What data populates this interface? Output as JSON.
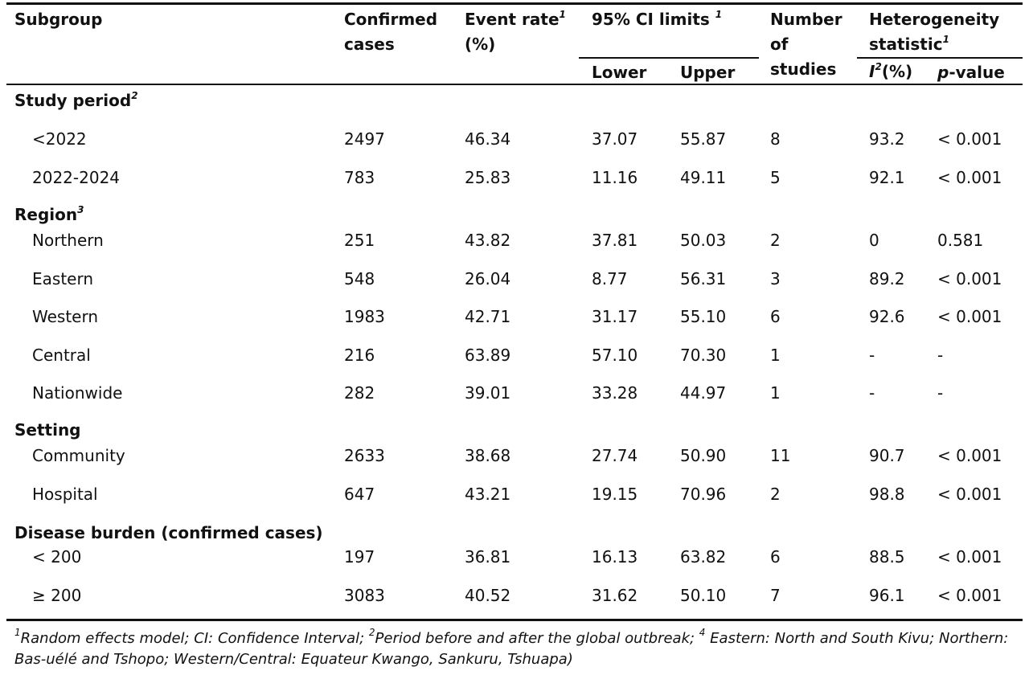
{
  "header": {
    "subgroup": "Subgroup",
    "confirmed": [
      "Confirmed",
      "cases"
    ],
    "event_rate": [
      "Event rate",
      "(%)"
    ],
    "event_rate_sup": "1",
    "ci": "95% CI limits",
    "ci_sup": "1",
    "lower": "Lower",
    "upper": "Upper",
    "studies": [
      "Number",
      "of",
      "studies"
    ],
    "het": [
      "Heterogeneity",
      "statistic"
    ],
    "het_sup": "1",
    "i2_letter": "I",
    "i2_sup": "2",
    "i2_rest": "(%)",
    "p_letter": "p",
    "p_rest": "-value"
  },
  "groups": [
    {
      "title": "Study period",
      "sup": "2",
      "rows": [
        [
          "<2022",
          "2497",
          "46.34",
          "37.07",
          "55.87",
          "8",
          "93.2",
          "< 0.001"
        ],
        [
          "2022-2024",
          "783",
          "25.83",
          "11.16",
          "49.11",
          "5",
          "92.1",
          "< 0.001"
        ]
      ]
    },
    {
      "title": "Region",
      "sup": "3",
      "rows": [
        [
          "Northern",
          "251",
          "43.82",
          "37.81",
          "50.03",
          "2",
          "0",
          "0.581"
        ],
        [
          "Eastern",
          "548",
          "26.04",
          "8.77",
          "56.31",
          "3",
          "89.2",
          "< 0.001"
        ],
        [
          "Western",
          "1983",
          "42.71",
          "31.17",
          "55.10",
          "6",
          "92.6",
          "< 0.001"
        ],
        [
          "Central",
          "216",
          "63.89",
          "57.10",
          "70.30",
          "1",
          "-",
          "-"
        ],
        [
          "Nationwide",
          "282",
          "39.01",
          "33.28",
          "44.97",
          "1",
          "-",
          "-"
        ]
      ]
    },
    {
      "title": "Setting",
      "sup": "",
      "rows": [
        [
          "Community",
          "2633",
          "38.68",
          "27.74",
          "50.90",
          "11",
          "90.7",
          "< 0.001"
        ],
        [
          "Hospital",
          "647",
          "43.21",
          "19.15",
          "70.96",
          "2",
          "98.8",
          "< 0.001"
        ]
      ]
    },
    {
      "title": "Disease burden (confirmed cases)",
      "sup": "",
      "rows": [
        [
          "< 200",
          "197",
          "36.81",
          "16.13",
          "63.82",
          "6",
          "88.5",
          "< 0.001"
        ],
        [
          "≥ 200",
          "3083",
          "40.52",
          "31.62",
          "50.10",
          "7",
          "96.1",
          "< 0.001"
        ]
      ]
    }
  ],
  "footnote": {
    "line1_parts": [
      "1",
      "Random effects model; CI: Confidence Interval; ",
      "2",
      "Period before and after the global outbreak; ",
      "4",
      " Eastern: North and South Kivu; Northern:"
    ],
    "line2": "Bas-uélé and Tshopo; Western/Central: Equateur Kwango, Sankuru, Tshuapa)"
  }
}
